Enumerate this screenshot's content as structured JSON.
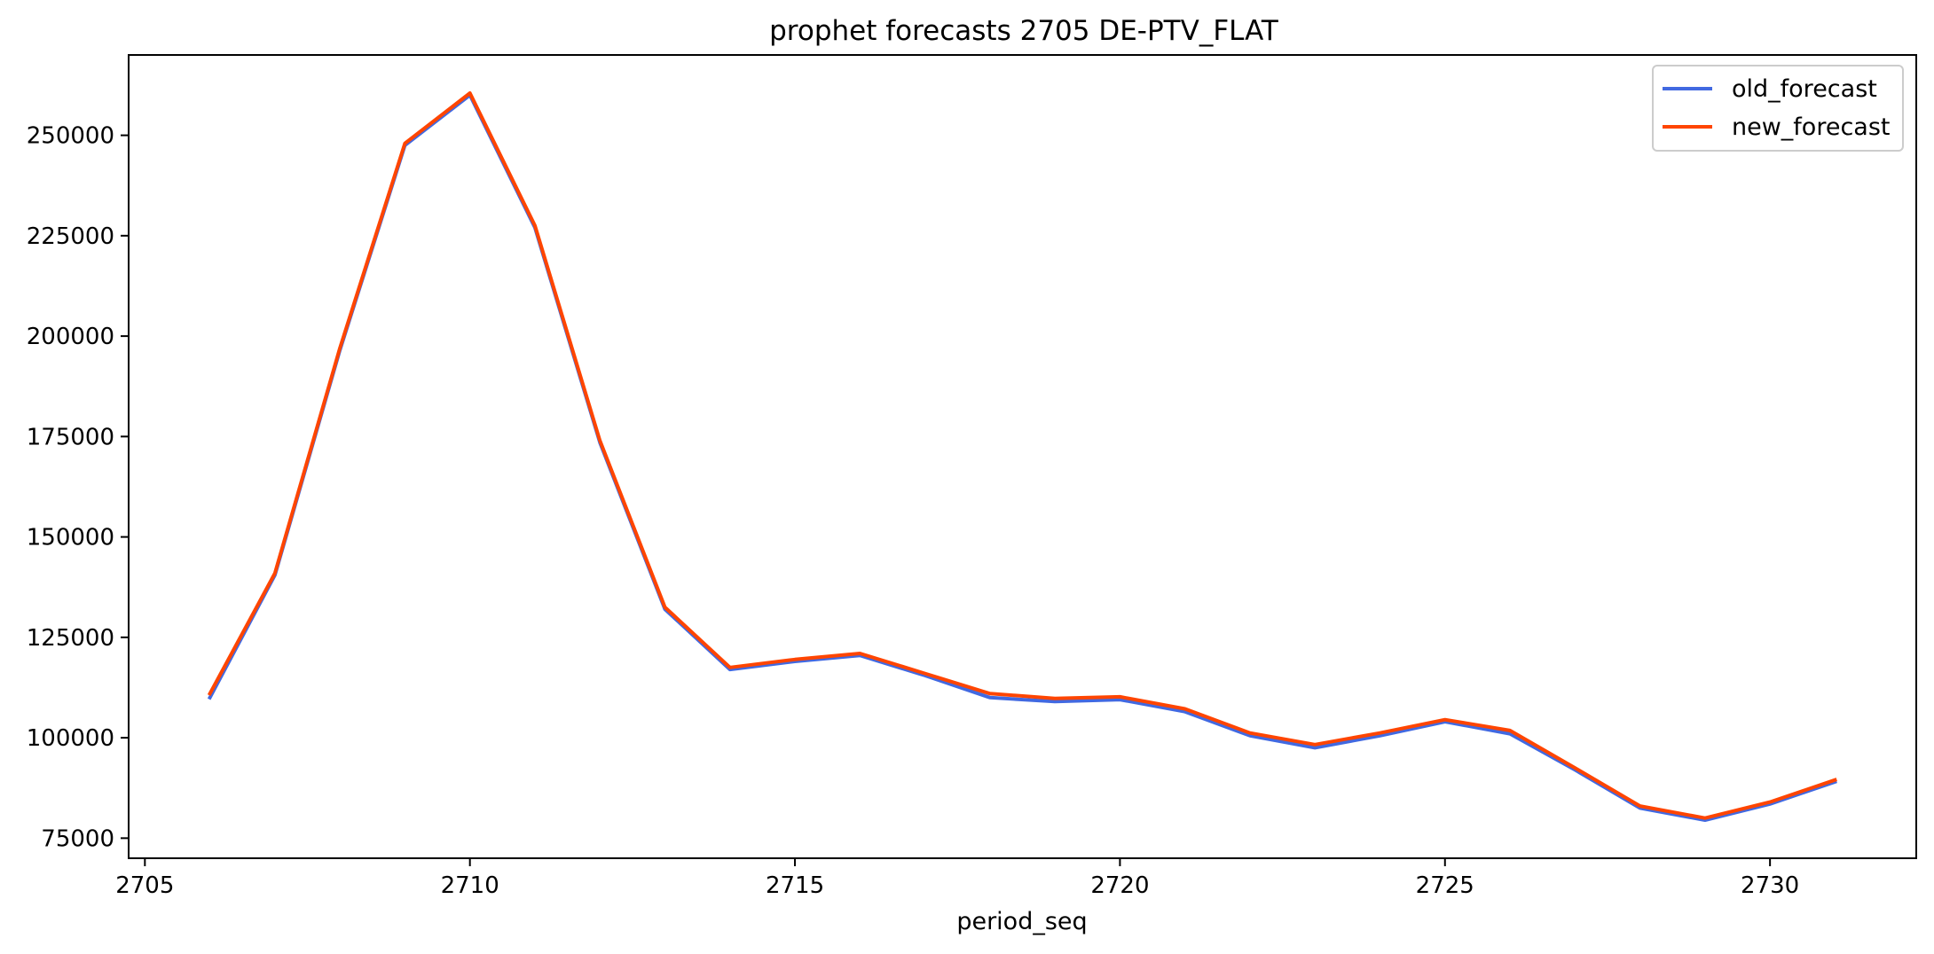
{
  "chart_data": {
    "type": "line",
    "title": "prophet forecasts 2705 DE-PTV_FLAT",
    "xlabel": "period_seq",
    "ylabel": "",
    "xlim": [
      2704.75,
      2732.25
    ],
    "ylim": [
      70000,
      270000
    ],
    "xticks": [
      2705,
      2710,
      2715,
      2720,
      2725,
      2730
    ],
    "yticks": [
      75000,
      100000,
      125000,
      150000,
      175000,
      200000,
      225000,
      250000
    ],
    "grid": false,
    "legend": "top-right",
    "x": [
      2706,
      2707,
      2708,
      2709,
      2710,
      2711,
      2712,
      2713,
      2714,
      2715,
      2716,
      2717,
      2718,
      2719,
      2720,
      2721,
      2722,
      2723,
      2724,
      2725,
      2726,
      2727,
      2728,
      2729,
      2730,
      2731
    ],
    "series": [
      {
        "name": "old_forecast",
        "color": "#4169e1",
        "values": [
          110000,
          140500,
          196500,
          247500,
          260000,
          227000,
          173500,
          132000,
          117000,
          119000,
          120500,
          115500,
          110000,
          109000,
          109500,
          106500,
          100500,
          97500,
          100500,
          104000,
          101000,
          92000,
          82500,
          79500,
          83500,
          89000
        ]
      },
      {
        "name": "new_forecast",
        "color": "#ff4500",
        "values": [
          111000,
          141000,
          197000,
          248000,
          260500,
          227500,
          174000,
          132500,
          117500,
          119500,
          121000,
          116000,
          111000,
          109800,
          110200,
          107200,
          101200,
          98300,
          101200,
          104500,
          101800,
          92500,
          83000,
          80000,
          84000,
          89500
        ]
      }
    ]
  }
}
